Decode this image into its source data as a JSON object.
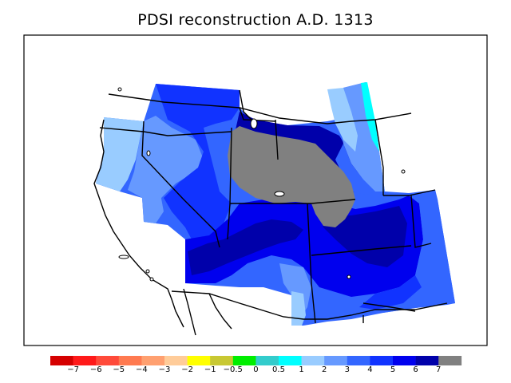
{
  "title": "PDSI reconstruction A.D. 1313",
  "legend": {
    "colors": [
      "#d50000",
      "#ff1a1a",
      "#ff4a3a",
      "#ff7a50",
      "#ffa070",
      "#ffcc99",
      "#ffff00",
      "#c8c832",
      "#00ee00",
      "#33cccc",
      "#00ffff",
      "#99ccff",
      "#6699ff",
      "#3366ff",
      "#1133ff",
      "#0000ee",
      "#0000aa",
      "#808080"
    ],
    "tick_labels": [
      "−7",
      "−6",
      "−5",
      "−4",
      "−3",
      "−2",
      "−1",
      "−0.5",
      "0",
      "0.5",
      "1",
      "2",
      "3",
      "4",
      "5",
      "6",
      "7"
    ]
  },
  "palette": {
    "c2": "#99ccff",
    "c3": "#6699ff",
    "c4": "#3366ff",
    "c5": "#1133ff",
    "c6": "#0000ee",
    "c7": "#0000aa",
    "missing": "#808080",
    "c1": "#00ffff"
  }
}
